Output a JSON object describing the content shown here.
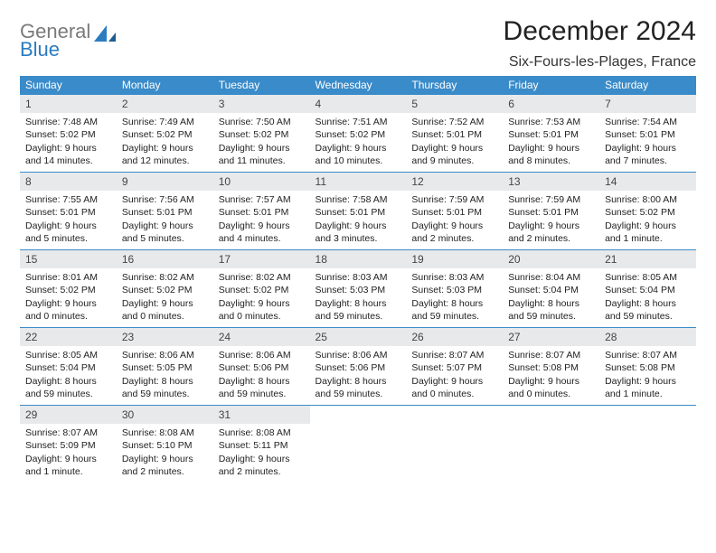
{
  "brand": {
    "part1": "General",
    "part2": "Blue"
  },
  "title": "December 2024",
  "location": "Six-Fours-les-Plages, France",
  "colors": {
    "header_bg": "#3a8bc9",
    "header_text": "#ffffff",
    "daynum_bg": "#e7e9eb",
    "rule": "#3a8bc9",
    "logo_gray": "#7a7a7a",
    "logo_blue": "#2b7bbf"
  },
  "dayNames": [
    "Sunday",
    "Monday",
    "Tuesday",
    "Wednesday",
    "Thursday",
    "Friday",
    "Saturday"
  ],
  "weeks": [
    [
      {
        "n": "1",
        "sr": "7:48 AM",
        "ss": "5:02 PM",
        "dl": "9 hours and 14 minutes."
      },
      {
        "n": "2",
        "sr": "7:49 AM",
        "ss": "5:02 PM",
        "dl": "9 hours and 12 minutes."
      },
      {
        "n": "3",
        "sr": "7:50 AM",
        "ss": "5:02 PM",
        "dl": "9 hours and 11 minutes."
      },
      {
        "n": "4",
        "sr": "7:51 AM",
        "ss": "5:02 PM",
        "dl": "9 hours and 10 minutes."
      },
      {
        "n": "5",
        "sr": "7:52 AM",
        "ss": "5:01 PM",
        "dl": "9 hours and 9 minutes."
      },
      {
        "n": "6",
        "sr": "7:53 AM",
        "ss": "5:01 PM",
        "dl": "9 hours and 8 minutes."
      },
      {
        "n": "7",
        "sr": "7:54 AM",
        "ss": "5:01 PM",
        "dl": "9 hours and 7 minutes."
      }
    ],
    [
      {
        "n": "8",
        "sr": "7:55 AM",
        "ss": "5:01 PM",
        "dl": "9 hours and 5 minutes."
      },
      {
        "n": "9",
        "sr": "7:56 AM",
        "ss": "5:01 PM",
        "dl": "9 hours and 5 minutes."
      },
      {
        "n": "10",
        "sr": "7:57 AM",
        "ss": "5:01 PM",
        "dl": "9 hours and 4 minutes."
      },
      {
        "n": "11",
        "sr": "7:58 AM",
        "ss": "5:01 PM",
        "dl": "9 hours and 3 minutes."
      },
      {
        "n": "12",
        "sr": "7:59 AM",
        "ss": "5:01 PM",
        "dl": "9 hours and 2 minutes."
      },
      {
        "n": "13",
        "sr": "7:59 AM",
        "ss": "5:01 PM",
        "dl": "9 hours and 2 minutes."
      },
      {
        "n": "14",
        "sr": "8:00 AM",
        "ss": "5:02 PM",
        "dl": "9 hours and 1 minute."
      }
    ],
    [
      {
        "n": "15",
        "sr": "8:01 AM",
        "ss": "5:02 PM",
        "dl": "9 hours and 0 minutes."
      },
      {
        "n": "16",
        "sr": "8:02 AM",
        "ss": "5:02 PM",
        "dl": "9 hours and 0 minutes."
      },
      {
        "n": "17",
        "sr": "8:02 AM",
        "ss": "5:02 PM",
        "dl": "9 hours and 0 minutes."
      },
      {
        "n": "18",
        "sr": "8:03 AM",
        "ss": "5:03 PM",
        "dl": "8 hours and 59 minutes."
      },
      {
        "n": "19",
        "sr": "8:03 AM",
        "ss": "5:03 PM",
        "dl": "8 hours and 59 minutes."
      },
      {
        "n": "20",
        "sr": "8:04 AM",
        "ss": "5:04 PM",
        "dl": "8 hours and 59 minutes."
      },
      {
        "n": "21",
        "sr": "8:05 AM",
        "ss": "5:04 PM",
        "dl": "8 hours and 59 minutes."
      }
    ],
    [
      {
        "n": "22",
        "sr": "8:05 AM",
        "ss": "5:04 PM",
        "dl": "8 hours and 59 minutes."
      },
      {
        "n": "23",
        "sr": "8:06 AM",
        "ss": "5:05 PM",
        "dl": "8 hours and 59 minutes."
      },
      {
        "n": "24",
        "sr": "8:06 AM",
        "ss": "5:06 PM",
        "dl": "8 hours and 59 minutes."
      },
      {
        "n": "25",
        "sr": "8:06 AM",
        "ss": "5:06 PM",
        "dl": "8 hours and 59 minutes."
      },
      {
        "n": "26",
        "sr": "8:07 AM",
        "ss": "5:07 PM",
        "dl": "9 hours and 0 minutes."
      },
      {
        "n": "27",
        "sr": "8:07 AM",
        "ss": "5:08 PM",
        "dl": "9 hours and 0 minutes."
      },
      {
        "n": "28",
        "sr": "8:07 AM",
        "ss": "5:08 PM",
        "dl": "9 hours and 1 minute."
      }
    ],
    [
      {
        "n": "29",
        "sr": "8:07 AM",
        "ss": "5:09 PM",
        "dl": "9 hours and 1 minute."
      },
      {
        "n": "30",
        "sr": "8:08 AM",
        "ss": "5:10 PM",
        "dl": "9 hours and 2 minutes."
      },
      {
        "n": "31",
        "sr": "8:08 AM",
        "ss": "5:11 PM",
        "dl": "9 hours and 2 minutes."
      },
      null,
      null,
      null,
      null
    ]
  ],
  "labels": {
    "sunrise": "Sunrise:",
    "sunset": "Sunset:",
    "daylight": "Daylight:"
  }
}
